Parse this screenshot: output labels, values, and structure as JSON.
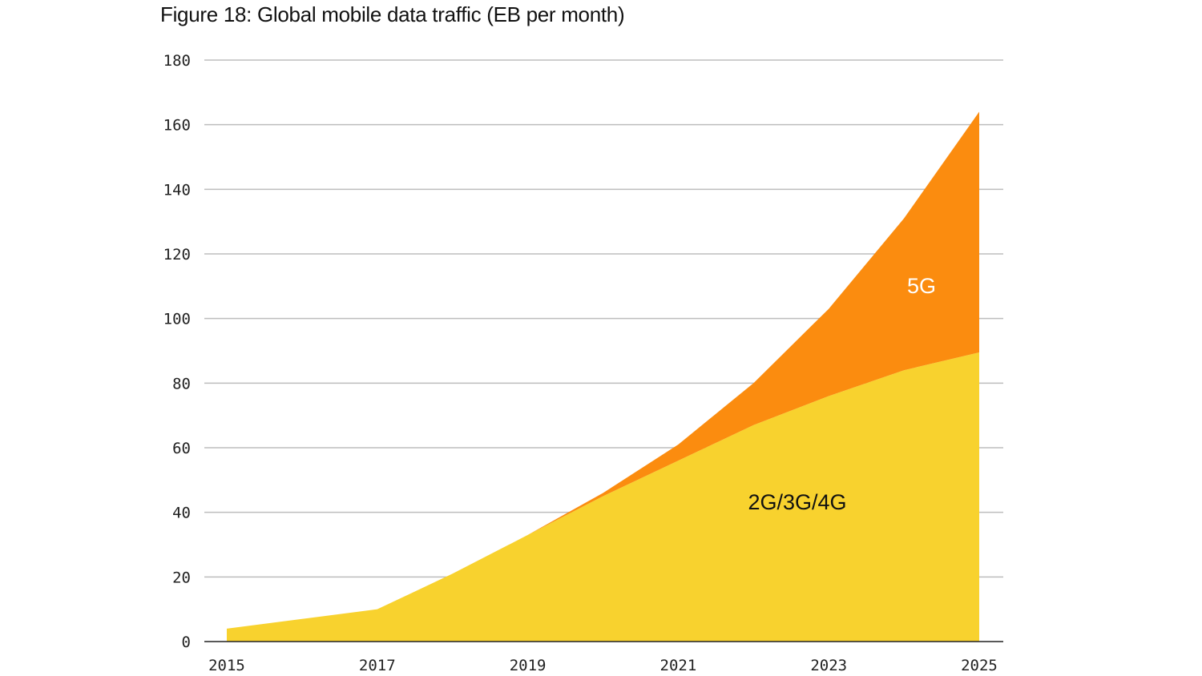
{
  "chart_data": {
    "type": "area",
    "stacked": true,
    "title": "Figure 18: Global mobile data traffic (EB per month)",
    "xlabel": "",
    "ylabel": "",
    "x": [
      2015,
      2016,
      2017,
      2018,
      2019,
      2020,
      2021,
      2022,
      2023,
      2024,
      2025
    ],
    "x_tick_labels": [
      "2015",
      "2017",
      "2019",
      "2021",
      "2023",
      "2025"
    ],
    "y_tick_labels": [
      "0",
      "20",
      "40",
      "60",
      "80",
      "100",
      "120",
      "140",
      "160",
      "180"
    ],
    "ylim": [
      0,
      180
    ],
    "xlim": [
      2015,
      2025
    ],
    "grid": "horizontal",
    "series": [
      {
        "name": "2G/3G/4G",
        "color": "#F8D22E",
        "label_color": "#111111",
        "values": [
          4,
          7,
          10,
          21,
          33,
          45,
          56,
          67,
          76,
          84,
          89.5
        ]
      },
      {
        "name": "5G",
        "color": "#FB8C0F",
        "label_color": "#FFFFFF",
        "values": [
          0,
          0,
          0,
          0,
          0,
          1,
          5,
          13,
          27,
          47,
          74.5
        ]
      }
    ]
  }
}
